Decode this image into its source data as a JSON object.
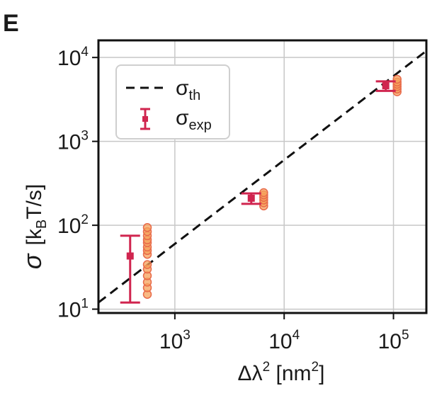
{
  "panel_label": "E",
  "chart_data": {
    "type": "scatter",
    "title": "",
    "xlabel": {
      "base": "Δλ",
      "sup": "2",
      "unit_open": " [nm",
      "unit_sup": "2",
      "unit_close": "]"
    },
    "ylabel": {
      "symbol": "σ",
      "unit_open": "[k",
      "unit_sub": "B",
      "unit_close": "T/s]"
    },
    "x_scale": "log",
    "y_scale": "log",
    "xlim": [
      200,
      200000
    ],
    "ylim": [
      9,
      16000
    ],
    "grid": true,
    "x_ticks": [
      {
        "value": 1000,
        "base": "10",
        "exp": "3"
      },
      {
        "value": 10000,
        "base": "10",
        "exp": "4"
      },
      {
        "value": 100000,
        "base": "10",
        "exp": "5"
      }
    ],
    "y_ticks": [
      {
        "value": 10,
        "base": "10",
        "exp": "1"
      },
      {
        "value": 100,
        "base": "10",
        "exp": "2"
      },
      {
        "value": 1000,
        "base": "10",
        "exp": "3"
      },
      {
        "value": 10000,
        "base": "10",
        "exp": "4"
      }
    ],
    "legend": {
      "placement": "upper-left",
      "entries": [
        {
          "key": "theory",
          "symbol": "σ",
          "sub": "th"
        },
        {
          "key": "experiment",
          "symbol": "σ",
          "sub": "exp"
        }
      ]
    },
    "theory_line": {
      "slope": 0.06,
      "from_x": 200,
      "to_x": 200000,
      "color": "#111111",
      "dash": true
    },
    "experiment": {
      "color": "#d0254f",
      "points": [
        {
          "x": 390,
          "y": 43,
          "ylow": 12,
          "yhigh": 75
        },
        {
          "x": 5000,
          "y": 210,
          "ylow": 180,
          "yhigh": 240
        },
        {
          "x": 85000,
          "y": 4600,
          "ylow": 4000,
          "yhigh": 5200
        }
      ]
    },
    "samples": {
      "fill": "#f5a25a",
      "stroke": "#e86a4a",
      "groups": [
        {
          "x": 560,
          "y": [
            15,
            18,
            21,
            25,
            30,
            34,
            45,
            50,
            55,
            62,
            67,
            75,
            84,
            94
          ]
        },
        {
          "x": 6500,
          "y": [
            170,
            185,
            200,
            215,
            230,
            245
          ]
        },
        {
          "x": 108000,
          "y": [
            3900,
            4200,
            4500,
            4800,
            5100,
            5500
          ]
        }
      ]
    }
  }
}
